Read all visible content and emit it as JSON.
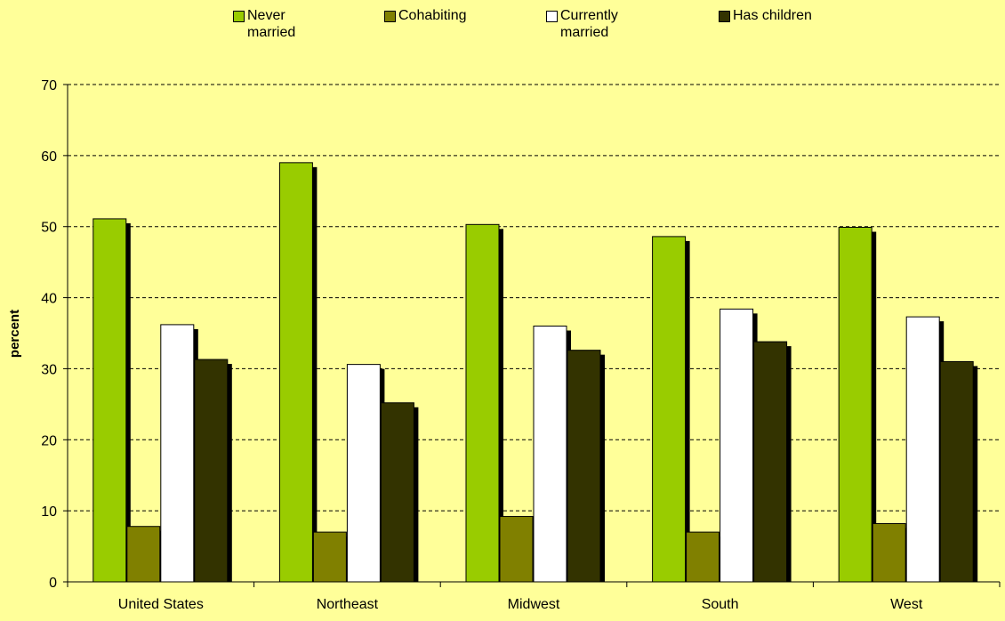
{
  "chart_data": {
    "type": "bar",
    "categories": [
      "United States",
      "Northeast",
      "Midwest",
      "South",
      "West"
    ],
    "series": [
      {
        "name": "Never married",
        "color": "#99cc00",
        "values": [
          51.1,
          59.0,
          50.3,
          48.6,
          49.9
        ]
      },
      {
        "name": "Cohabiting",
        "color": "#808000",
        "values": [
          7.8,
          7.0,
          9.2,
          7.0,
          8.2
        ]
      },
      {
        "name": "Currently married",
        "color": "#ffffff",
        "values": [
          36.2,
          30.6,
          36.0,
          38.4,
          37.3
        ]
      },
      {
        "name": "Has children",
        "color": "#333300",
        "values": [
          31.3,
          25.2,
          32.6,
          33.8,
          31.0
        ]
      }
    ],
    "y_label": "percent",
    "ylim": [
      0,
      70
    ],
    "yticks": [
      0,
      10,
      20,
      30,
      40,
      50,
      60,
      70
    ],
    "grid": true
  }
}
